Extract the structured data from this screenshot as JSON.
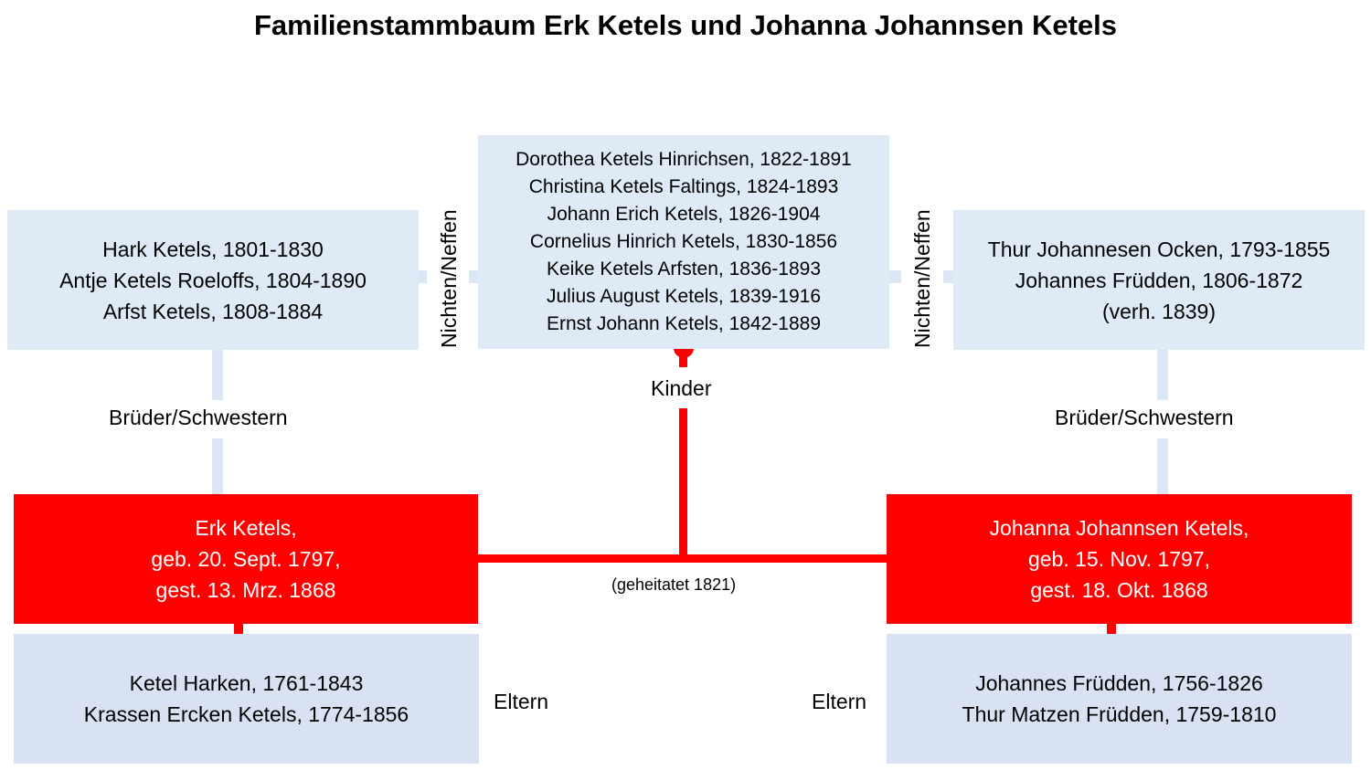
{
  "title": "Familienstammbaum Erk Ketels und Johanna Johannsen Ketels",
  "colors": {
    "red": "#ff0000",
    "light_blue": "#deeaf6",
    "parent_blue": "#d9e2f3",
    "connector_light": "#dbe7f5"
  },
  "children": [
    "Dorothea Ketels Hinrichsen, 1822-1891",
    "Christina Ketels Faltings, 1824-1893",
    "Johann Erich Ketels, 1826-1904",
    "Cornelius Hinrich Ketels, 1830-1856",
    "Keike Ketels Arfsten, 1836-1893",
    "Julius August Ketels, 1839-1916",
    "Ernst Johann Ketels, 1842-1889"
  ],
  "siblings_left": [
    "Hark Ketels, 1801-1830",
    "Antje Ketels Roeloffs, 1804-1890",
    "Arfst Ketels, 1808-1884"
  ],
  "siblings_right": [
    "Thur Johannesen Ocken, 1793-1855",
    "Johannes Früdden, 1806-1872",
    "(verh. 1839)"
  ],
  "erk": [
    "Erk Ketels,",
    "geb. 20. Sept. 1797,",
    "gest. 13. Mrz. 1868"
  ],
  "johanna": [
    "Johanna Johannsen Ketels,",
    "geb. 15. Nov. 1797,",
    "gest. 18. Okt. 1868"
  ],
  "parents_left": [
    "Ketel Harken, 1761-1843",
    "Krassen Ercken Ketels, 1774-1856"
  ],
  "parents_right": [
    "Johannes Früdden, 1756-1826",
    "Thur Matzen Früdden, 1759-1810"
  ],
  "labels": {
    "nichten_neffen": "Nichten/Neffen",
    "brueder_schwestern": "Brüder/Schwestern",
    "kinder": "Kinder",
    "eltern": "Eltern",
    "married": "(geheitatet 1821)"
  }
}
